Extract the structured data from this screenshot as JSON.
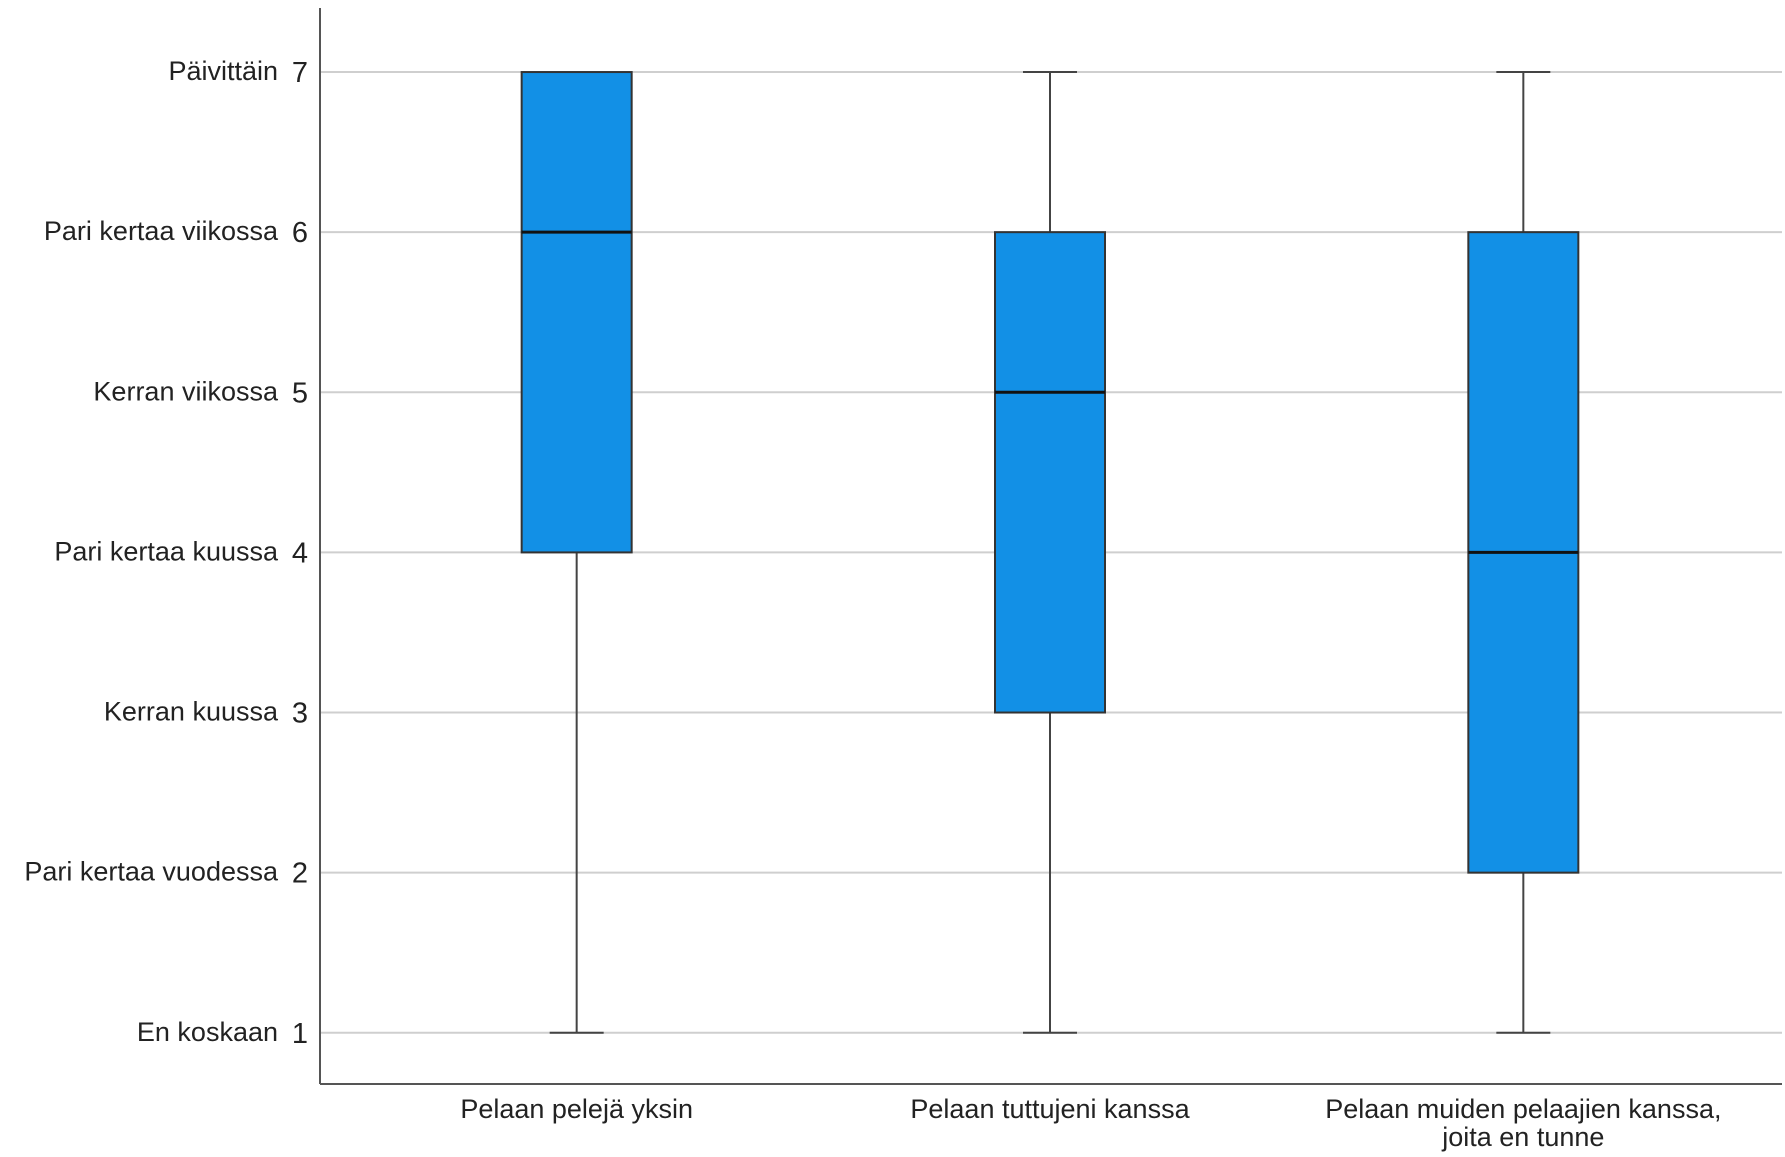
{
  "chart_data": {
    "type": "boxplot",
    "y_ticks": [
      1,
      2,
      3,
      4,
      5,
      6,
      7
    ],
    "y_tick_labels": [
      "En koskaan",
      "Pari kertaa vuodessa",
      "Kerran kuussa",
      "Pari kertaa kuussa",
      "Kerran viikossa",
      "Pari kertaa viikossa",
      "Päivittäin"
    ],
    "ylim": [
      0.68,
      7.4
    ],
    "grid": "horizontal",
    "categories": [
      [
        "Pelaan pelejä yksin"
      ],
      [
        "Pelaan tuttujeni kanssa"
      ],
      [
        "Pelaan muiden pelaajien kanssa,",
        "joita en tunne"
      ]
    ],
    "boxes": [
      {
        "min": 1,
        "q1": 4,
        "median": 6,
        "q3": 7,
        "max": 7
      },
      {
        "min": 1,
        "q1": 3,
        "median": 5,
        "q3": 6,
        "max": 7
      },
      {
        "min": 1,
        "q1": 2,
        "median": 4,
        "q3": 6,
        "max": 7
      }
    ],
    "colors": {
      "box_fill": "#1290E6",
      "box_stroke": "#333333",
      "median": "#111111",
      "whisker": "#444444",
      "grid": "#CFCFCF",
      "axis": "#555555"
    }
  }
}
